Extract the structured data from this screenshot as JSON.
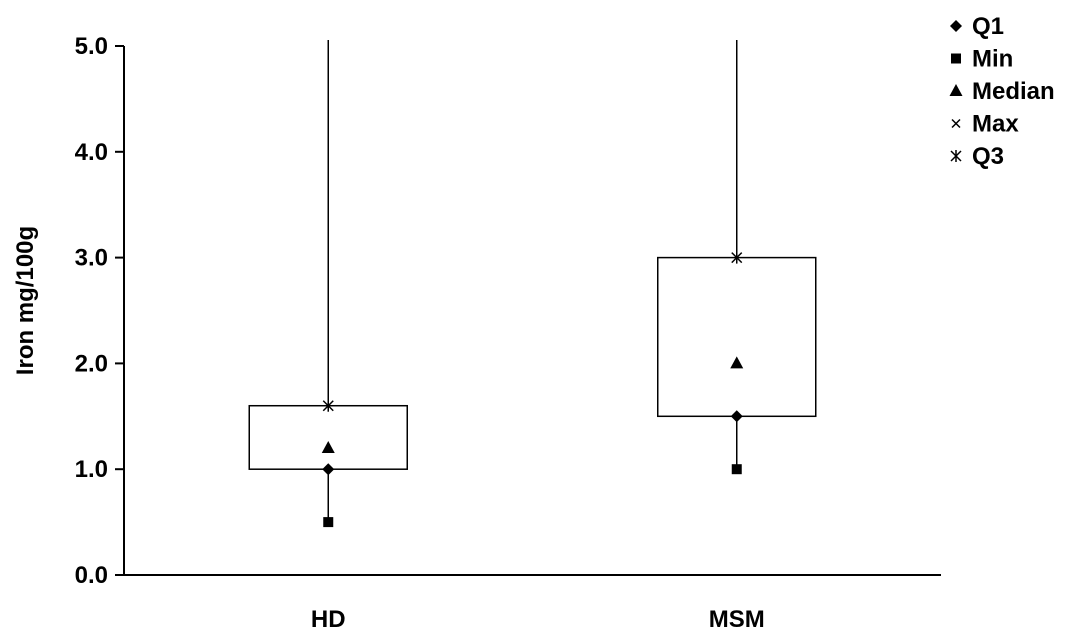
{
  "chart_data": {
    "type": "box",
    "ylabel": "Iron mg/100g",
    "xlabel": "",
    "ylim": [
      0,
      5.0
    ],
    "ytick_step": 1.0,
    "ytick_labels": [
      "0.0",
      "1.0",
      "2.0",
      "3.0",
      "4.0",
      "5.0"
    ],
    "categories": [
      "HD",
      "MSM"
    ],
    "series": [
      {
        "name": "Q1",
        "marker": "diamond",
        "values": [
          1.0,
          1.5
        ]
      },
      {
        "name": "Min",
        "marker": "square",
        "values": [
          0.5,
          1.0
        ]
      },
      {
        "name": "Median",
        "marker": "triangle",
        "values": [
          1.2,
          2.0
        ]
      },
      {
        "name": "Max",
        "marker": "x",
        "values": [
          5.0,
          5.0
        ]
      },
      {
        "name": "Q3",
        "marker": "star",
        "values": [
          1.6,
          3.0
        ]
      }
    ],
    "grid": false,
    "legend": "top-right",
    "colors": {
      "ink": "#000000",
      "background": "#ffffff"
    }
  }
}
